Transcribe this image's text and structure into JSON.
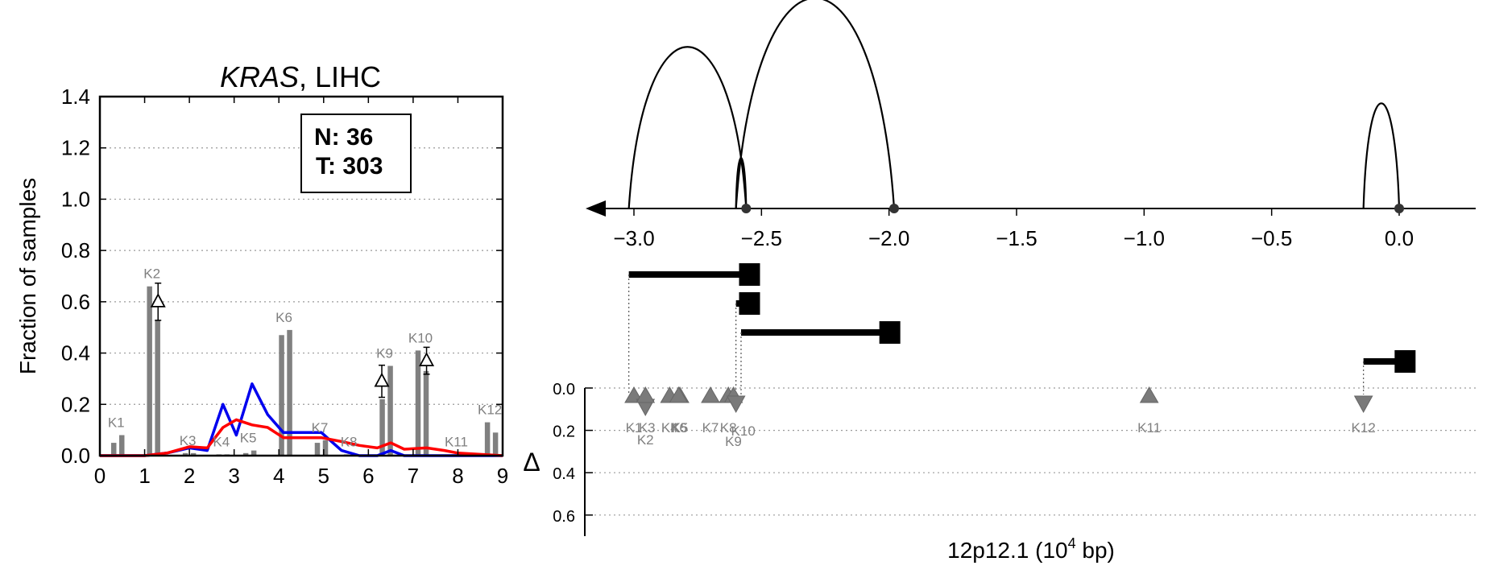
{
  "chart_data": [
    {
      "type": "bar",
      "title_italic": "KRAS",
      "title_rest": ", LIHC",
      "ylabel": "Fraction of samples",
      "xlim": [
        0,
        9
      ],
      "ylim": [
        0,
        1.4
      ],
      "xticks": [
        "0",
        "1",
        "2",
        "3",
        "4",
        "5",
        "6",
        "7",
        "8",
        "9"
      ],
      "yticks": [
        "0.0",
        "0.2",
        "0.4",
        "0.6",
        "0.8",
        "1.0",
        "1.2",
        "1.4"
      ],
      "grid": true,
      "box": {
        "line1": "N: 36",
        "line2": "T: 303"
      },
      "categories": [
        "K1",
        "K2",
        "K3",
        "K4",
        "K5",
        "K6",
        "K7",
        "K8",
        "K9",
        "K10",
        "K11",
        "K12"
      ],
      "bar_x": [
        0.4,
        1.2,
        2.0,
        2.75,
        3.35,
        4.15,
        4.95,
        5.6,
        6.4,
        7.2,
        8.0,
        8.75
      ],
      "series": [
        {
          "values": [
            0.05,
            0.66,
            0.01,
            0.005,
            0.01,
            0.47,
            0.05,
            0.005,
            0.22,
            0.41,
            0.005,
            0.13
          ]
        },
        {
          "values": [
            0.08,
            0.53,
            0.01,
            0.005,
            0.02,
            0.49,
            0.06,
            0.005,
            0.35,
            0.33,
            0.005,
            0.09
          ]
        }
      ],
      "delta_markers": [
        {
          "x": 1.3,
          "y": 0.6,
          "err": 0.06
        },
        {
          "x": 6.3,
          "y": 0.29,
          "err": 0.05
        },
        {
          "x": 7.3,
          "y": 0.37,
          "err": 0.04
        }
      ],
      "lines": [
        {
          "color": "#0000ee",
          "points": [
            [
              0,
              0
            ],
            [
              0.5,
              0
            ],
            [
              1,
              0
            ],
            [
              1.5,
              0.01
            ],
            [
              2,
              0.03
            ],
            [
              2.4,
              0.02
            ],
            [
              2.75,
              0.2
            ],
            [
              3.05,
              0.08
            ],
            [
              3.4,
              0.28
            ],
            [
              3.75,
              0.16
            ],
            [
              4.1,
              0.09
            ],
            [
              4.6,
              0.09
            ],
            [
              4.95,
              0.09
            ],
            [
              5.4,
              0.02
            ],
            [
              5.8,
              0
            ],
            [
              6.2,
              0
            ],
            [
              6.5,
              0.02
            ],
            [
              6.8,
              0
            ],
            [
              7.3,
              0
            ],
            [
              8,
              0
            ],
            [
              8.5,
              0
            ],
            [
              9,
              0
            ]
          ]
        },
        {
          "color": "#ff0000",
          "points": [
            [
              0,
              0
            ],
            [
              0.5,
              0
            ],
            [
              1,
              0
            ],
            [
              1.5,
              0.01
            ],
            [
              2,
              0.035
            ],
            [
              2.4,
              0.03
            ],
            [
              2.75,
              0.11
            ],
            [
              3.05,
              0.14
            ],
            [
              3.4,
              0.12
            ],
            [
              3.75,
              0.11
            ],
            [
              4.1,
              0.07
            ],
            [
              4.6,
              0.07
            ],
            [
              4.95,
              0.07
            ],
            [
              5.4,
              0.055
            ],
            [
              5.8,
              0.04
            ],
            [
              6.2,
              0.03
            ],
            [
              6.5,
              0.05
            ],
            [
              6.8,
              0.025
            ],
            [
              7.3,
              0.03
            ],
            [
              7.7,
              0.02
            ],
            [
              8,
              0.01
            ],
            [
              8.5,
              0.005
            ],
            [
              9,
              0
            ]
          ]
        }
      ]
    },
    {
      "type": "genomic-track",
      "xlabel_main": "12p12.1 (10",
      "xlabel_sup": "4",
      "xlabel_tail": " bp)",
      "xlim": [
        -3.16,
        0.2
      ],
      "xticks": [
        {
          "v": -3.0,
          "label": "−3.0"
        },
        {
          "v": -2.5,
          "label": "−2.5"
        },
        {
          "v": -2.0,
          "label": "−2.0"
        },
        {
          "v": -1.5,
          "label": "−1.5"
        },
        {
          "v": -1.0,
          "label": "−1.0"
        },
        {
          "v": -0.5,
          "label": "−0.5"
        },
        {
          "v": 0.0,
          "label": "0.0"
        }
      ],
      "delta_label": "Δ",
      "delta_ticks": [
        "0.0",
        "0.2",
        "0.4",
        "0.6"
      ],
      "delta_lim": [
        0,
        0.7
      ],
      "arcs": [
        {
          "from": -3.02,
          "to": -2.56,
          "height": 0.86
        },
        {
          "from": -2.6,
          "to": -1.98,
          "height": 1.12
        },
        {
          "from": -2.6,
          "to": -2.56,
          "height": 0.27
        },
        {
          "from": -0.14,
          "to": 0.0,
          "height": 0.56
        }
      ],
      "site_dots": [
        -2.56,
        -1.98,
        0.0
      ],
      "isoforms": [
        {
          "start": -3.02,
          "end": -2.55,
          "row": 0
        },
        {
          "start": -2.6,
          "end": -2.55,
          "row": 1
        },
        {
          "start": -2.58,
          "end": -2.0,
          "row": 2
        },
        {
          "start": -0.14,
          "end": 0.02,
          "row": 3
        }
      ],
      "exons": [
        {
          "name": "K1",
          "x": -3.0,
          "dir": "up",
          "label_row": 0
        },
        {
          "name": "K2",
          "x": -2.955,
          "dir": "down",
          "label_row": 1
        },
        {
          "name": "K3",
          "x": -2.955,
          "dir": "up",
          "label_row": 0
        },
        {
          "name": "K4",
          "x": -2.86,
          "dir": "up",
          "label_row": 0
        },
        {
          "name": "K5",
          "x": -2.82,
          "dir": "up",
          "label_row": 0
        },
        {
          "name": "K6",
          "x": -2.825,
          "dir": "up",
          "label_row": 0
        },
        {
          "name": "K7",
          "x": -2.7,
          "dir": "up",
          "label_row": 0
        },
        {
          "name": "K8",
          "x": -2.63,
          "dir": "up",
          "label_row": 0
        },
        {
          "name": "K9",
          "x": -2.61,
          "dir": "up",
          "label_row": 0.6
        },
        {
          "name": "K10",
          "x": -2.6,
          "dir": "down",
          "label_row": 0.2
        },
        {
          "name": "K11",
          "x": -0.98,
          "dir": "up",
          "label_row": 0
        },
        {
          "name": "K12",
          "x": -0.14,
          "dir": "down",
          "label_row": 0
        }
      ]
    }
  ]
}
